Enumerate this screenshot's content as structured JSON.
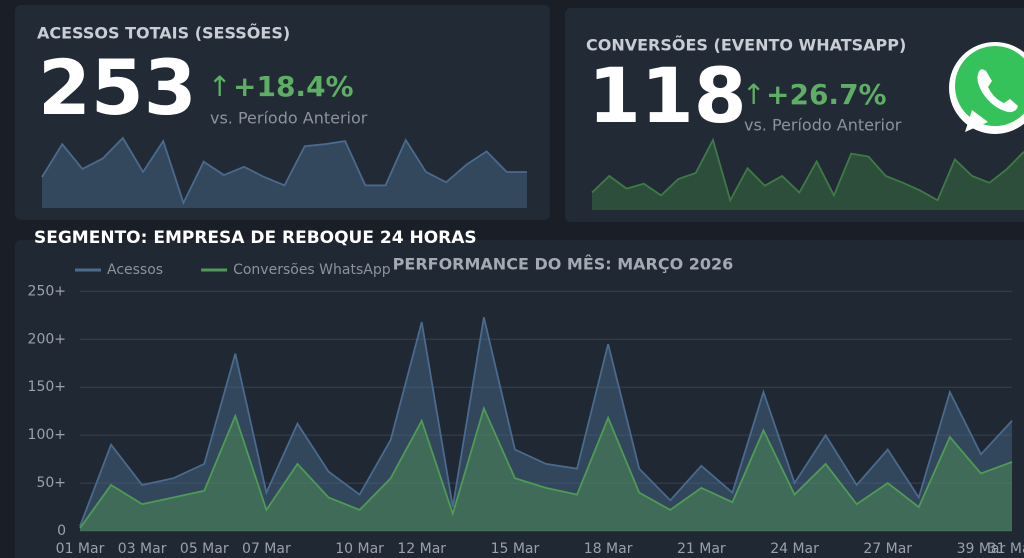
{
  "cards": [
    {
      "title": "ACESSOS TOTAIS (SESSÕES)",
      "value": 253,
      "delta": "+18.4%",
      "comparison": "vs. Período Anterior",
      "color": "#4a6a8e",
      "sparkline": [
        30,
        62,
        38,
        48,
        68,
        35,
        65,
        5,
        45,
        32,
        40,
        30,
        22,
        60,
        62,
        65,
        22,
        22,
        66,
        35,
        25,
        42,
        55,
        35,
        35
      ]
    },
    {
      "title": "CONVERSÕES (EVENTO WHATSAPP)",
      "value": 118,
      "delta": "+26.7%",
      "comparison": "vs. Período Anterior",
      "color": "#3e7a45",
      "sparkline": [
        18,
        35,
        22,
        27,
        15,
        32,
        38,
        72,
        10,
        43,
        25,
        35,
        18,
        50,
        15,
        58,
        55,
        35,
        28,
        20,
        10,
        52,
        35,
        28,
        42,
        60
      ]
    }
  ],
  "segment": "SEGMENTO: EMPRESA DE REBOQUE 24 HORAS",
  "chart_data": {
    "type": "area",
    "title": "PERFORMANCE DO MÊS: MARÇO 2026",
    "categories": [
      "01 Mar",
      null,
      "03 Mar",
      null,
      "05 Mar",
      null,
      "07 Mar",
      null,
      null,
      "10 Mar",
      null,
      "12 Mar",
      null,
      null,
      "15 Mar",
      null,
      null,
      "18 Mar",
      null,
      null,
      "21 Mar",
      null,
      null,
      "24 Mar",
      null,
      null,
      "27 Mar",
      null,
      null,
      "39 Mar",
      "31 Mar"
    ],
    "series": [
      {
        "name": "Acessos",
        "color": "#4a6a8e",
        "values": [
          5,
          90,
          48,
          55,
          70,
          185,
          40,
          112,
          62,
          38,
          95,
          218,
          25,
          223,
          85,
          70,
          65,
          195,
          65,
          32,
          68,
          40,
          145,
          50,
          100,
          48,
          85,
          35,
          145,
          80,
          115
        ]
      },
      {
        "name": "Conversões WhatsApp",
        "color": "#4f9a55",
        "values": [
          3,
          48,
          28,
          35,
          42,
          120,
          22,
          70,
          35,
          22,
          55,
          115,
          18,
          128,
          55,
          45,
          38,
          118,
          40,
          22,
          45,
          30,
          105,
          38,
          70,
          28,
          50,
          25,
          98,
          60,
          72
        ]
      }
    ],
    "ylim": [
      0,
      265
    ],
    "yticks": [
      0,
      {
        "value": 50,
        "label": "50+"
      },
      {
        "value": 100,
        "label": "100+"
      },
      {
        "value": 150,
        "label": "150+"
      },
      {
        "value": 200,
        "label": "200+"
      },
      {
        "value": 250,
        "label": "250+"
      }
    ],
    "grid": true,
    "legend": "top-left"
  }
}
